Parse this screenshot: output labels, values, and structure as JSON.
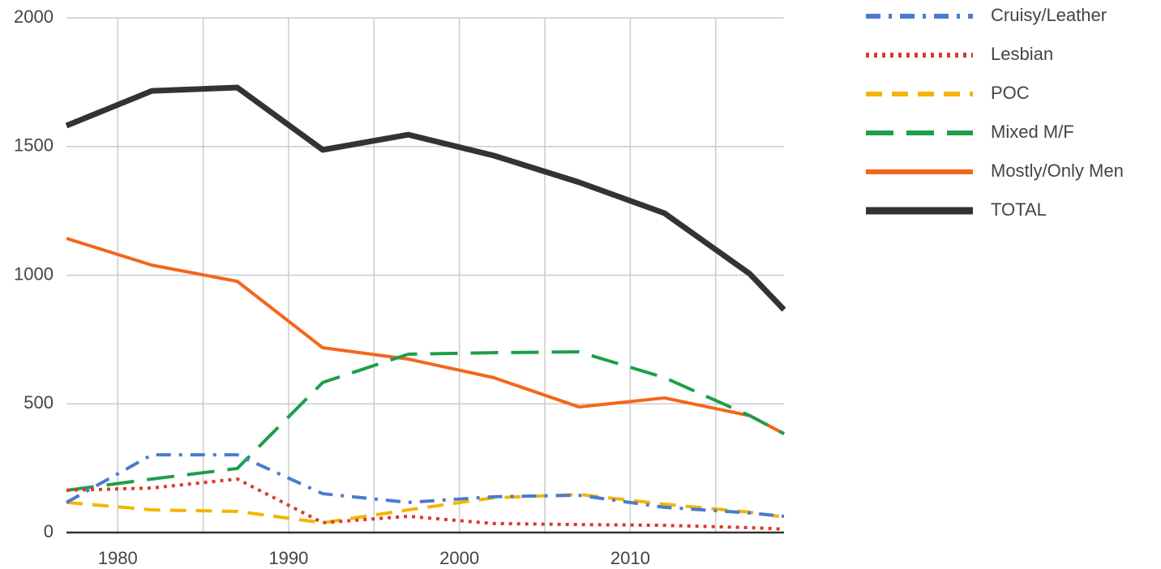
{
  "chart_data": {
    "type": "line",
    "x": [
      1977,
      1982,
      1987,
      1992,
      1997,
      2002,
      2007,
      2012,
      2017,
      2019
    ],
    "series": [
      {
        "name": "Cruisy/Leather",
        "color": "#4a7bd0",
        "dash": "dashdot",
        "values": [
          117,
          302,
          302,
          151,
          117,
          139,
          145,
          98,
          76,
          63
        ]
      },
      {
        "name": "Lesbian",
        "color": "#db3a2a",
        "dash": "dotted",
        "values": [
          164,
          173,
          208,
          38,
          63,
          35,
          31,
          28,
          19,
          13
        ]
      },
      {
        "name": "POC",
        "color": "#f5b400",
        "dash": "dashed",
        "values": [
          117,
          88,
          82,
          38,
          88,
          135,
          148,
          110,
          79,
          60
        ]
      },
      {
        "name": "Mixed M/F",
        "color": "#1e9e4a",
        "dash": "longdash",
        "values": [
          164,
          208,
          249,
          583,
          693,
          699,
          702,
          602,
          454,
          384
        ]
      },
      {
        "name": "Mostly/Only Men",
        "color": "#f4661b",
        "dash": "solid",
        "values": [
          1143,
          1039,
          976,
          718,
          674,
          602,
          488,
          523,
          454,
          384
        ]
      },
      {
        "name": "TOTAL",
        "color": "#333333",
        "dash": "thick",
        "values": [
          1581,
          1716,
          1729,
          1487,
          1546,
          1465,
          1361,
          1241,
          1005,
          866
        ]
      }
    ],
    "xlim": [
      1977,
      2019
    ],
    "xticks": [
      1980,
      1990,
      2000,
      2010
    ],
    "x_minor_grid": [
      1985,
      1995,
      2005,
      2015
    ],
    "ylim": [
      0,
      2000
    ],
    "yticks": [
      0,
      500,
      1000,
      1500,
      2000
    ],
    "grid": true,
    "legend": "right"
  }
}
